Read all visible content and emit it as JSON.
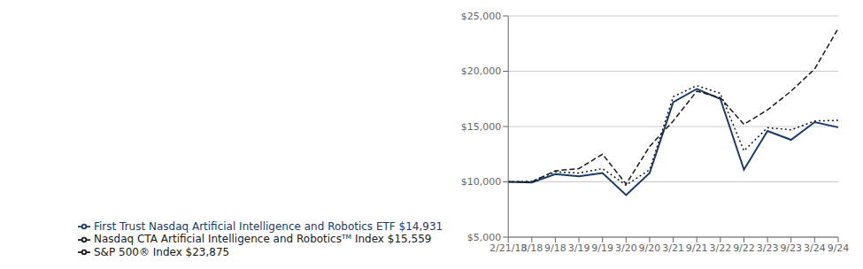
{
  "chart_data": {
    "type": "line",
    "categories": [
      "2/21/18",
      "3/18",
      "9/18",
      "3/19",
      "9/19",
      "3/20",
      "9/20",
      "3/21",
      "9/21",
      "3/22",
      "9/22",
      "3/23",
      "9/23",
      "3/24",
      "9/24"
    ],
    "series": [
      {
        "name": "First Trust Nasdaq Artificial Intelligence and Robotics ETF $14,931",
        "color": "#1a3a6b",
        "line_style": "solid",
        "values": [
          10000,
          9950,
          10700,
          10500,
          10800,
          8800,
          10800,
          17200,
          18400,
          17500,
          11100,
          14600,
          13800,
          15400,
          14931
        ]
      },
      {
        "name": "Nasdaq CTA Artificial Intelligence and Roboticsᵀᴹ Index $15,559",
        "color": "#1a1a1a",
        "line_style": "dotted",
        "values": [
          10000,
          10050,
          10900,
          10800,
          11200,
          9700,
          11100,
          17700,
          18700,
          18000,
          12800,
          14900,
          14700,
          15500,
          15559
        ]
      },
      {
        "name": "S&P 500® Index $23,875",
        "color": "#1a1a1a",
        "line_style": "dashed",
        "values": [
          10000,
          10000,
          11000,
          11200,
          12500,
          9800,
          13200,
          15500,
          18200,
          17600,
          15200,
          16500,
          18200,
          20200,
          23875
        ]
      }
    ],
    "ylim": [
      5000,
      25000
    ],
    "yticks": [
      {
        "value": 5000,
        "label": "$5,000"
      },
      {
        "value": 10000,
        "label": "$10,000"
      },
      {
        "value": 15000,
        "label": "$15,000"
      },
      {
        "value": 20000,
        "label": "$20,000"
      },
      {
        "value": 25000,
        "label": "$25,000"
      }
    ],
    "grid": true,
    "legend": "bottom"
  }
}
